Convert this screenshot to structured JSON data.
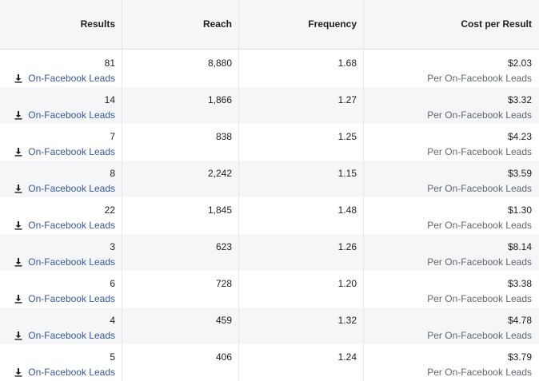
{
  "columns": {
    "results": "Results",
    "reach": "Reach",
    "frequency": "Frequency",
    "cost": "Cost per Result"
  },
  "rows": [
    {
      "results": "81",
      "result_type": "On-Facebook Leads",
      "reach": "8,880",
      "frequency": "1.68",
      "cost": "$2.03",
      "cost_unit": "Per On-Facebook Leads"
    },
    {
      "results": "14",
      "result_type": "On-Facebook Leads",
      "reach": "1,866",
      "frequency": "1.27",
      "cost": "$3.32",
      "cost_unit": "Per On-Facebook Leads"
    },
    {
      "results": "7",
      "result_type": "On-Facebook Leads",
      "reach": "838",
      "frequency": "1.25",
      "cost": "$4.23",
      "cost_unit": "Per On-Facebook Leads"
    },
    {
      "results": "8",
      "result_type": "On-Facebook Leads",
      "reach": "2,242",
      "frequency": "1.15",
      "cost": "$3.59",
      "cost_unit": "Per On-Facebook Leads"
    },
    {
      "results": "22",
      "result_type": "On-Facebook Leads",
      "reach": "1,845",
      "frequency": "1.48",
      "cost": "$1.30",
      "cost_unit": "Per On-Facebook Leads"
    },
    {
      "results": "3",
      "result_type": "On-Facebook Leads",
      "reach": "623",
      "frequency": "1.26",
      "cost": "$8.14",
      "cost_unit": "Per On-Facebook Leads"
    },
    {
      "results": "6",
      "result_type": "On-Facebook Leads",
      "reach": "728",
      "frequency": "1.20",
      "cost": "$3.38",
      "cost_unit": "Per On-Facebook Leads"
    },
    {
      "results": "4",
      "result_type": "On-Facebook Leads",
      "reach": "459",
      "frequency": "1.32",
      "cost": "$4.78",
      "cost_unit": "Per On-Facebook Leads"
    },
    {
      "results": "5",
      "result_type": "On-Facebook Leads",
      "reach": "406",
      "frequency": "1.24",
      "cost": "$3.79",
      "cost_unit": "Per On-Facebook Leads"
    }
  ],
  "icons": {
    "result_type": "download-icon"
  },
  "colors": {
    "link": "#385898",
    "alt_row": "#f5f6f7",
    "muted": "#606770"
  }
}
